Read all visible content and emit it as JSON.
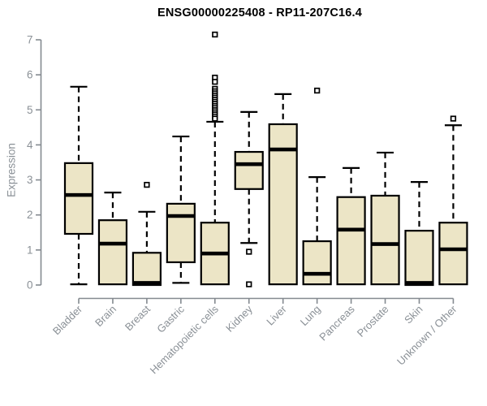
{
  "chart_data": {
    "type": "box",
    "title": "ENSG00000225408 - RP11-207C16.4",
    "ylabel": "Expression",
    "xlabel": "",
    "ylim": [
      0,
      7
    ],
    "yticks": [
      0,
      1,
      2,
      3,
      4,
      5,
      6,
      7
    ],
    "grid": false,
    "legend": "none",
    "categories": [
      "Bladder",
      "Brain",
      "Breast",
      "Gastric",
      "Hematopoietic cells",
      "Kidney",
      "Liver",
      "Lung",
      "Pancreas",
      "Prostate",
      "Skin",
      "Unknown / Other"
    ],
    "boxes": [
      {
        "category": "Bladder",
        "whisker_low": 0.02,
        "q1": 1.46,
        "median": 2.57,
        "q3": 3.48,
        "whisker_high": 5.66,
        "outliers": []
      },
      {
        "category": "Brain",
        "whisker_low": 0.02,
        "q1": 0.02,
        "median": 1.18,
        "q3": 1.85,
        "whisker_high": 2.64,
        "outliers": []
      },
      {
        "category": "Breast",
        "whisker_low": 0.0,
        "q1": 0.0,
        "median": 0.06,
        "q3": 0.92,
        "whisker_high": 2.09,
        "outliers": [
          2.86
        ]
      },
      {
        "category": "Gastric",
        "whisker_low": 0.06,
        "q1": 0.65,
        "median": 1.97,
        "q3": 2.32,
        "whisker_high": 4.24,
        "outliers": []
      },
      {
        "category": "Hematopoietic cells",
        "whisker_low": 0.02,
        "q1": 0.02,
        "median": 0.9,
        "q3": 1.78,
        "whisker_high": 4.66,
        "outliers": [
          7.15,
          5.92,
          5.8,
          5.6,
          5.53,
          5.47,
          5.41,
          5.35,
          5.29,
          5.23,
          5.17,
          5.11,
          5.05,
          4.99,
          4.93,
          4.87,
          4.81,
          4.75
        ]
      },
      {
        "category": "Kidney",
        "whisker_low": 1.2,
        "q1": 2.74,
        "median": 3.45,
        "q3": 3.8,
        "whisker_high": 4.94,
        "outliers": [
          0.95,
          0.02
        ]
      },
      {
        "category": "Liver",
        "whisker_low": 0.02,
        "q1": 0.02,
        "median": 3.87,
        "q3": 4.59,
        "whisker_high": 5.45,
        "outliers": []
      },
      {
        "category": "Lung",
        "whisker_low": 0.02,
        "q1": 0.02,
        "median": 0.32,
        "q3": 1.25,
        "whisker_high": 3.08,
        "outliers": [
          5.55
        ]
      },
      {
        "category": "Pancreas",
        "whisker_low": 0.02,
        "q1": 0.02,
        "median": 1.58,
        "q3": 2.51,
        "whisker_high": 3.34,
        "outliers": []
      },
      {
        "category": "Prostate",
        "whisker_low": 0.02,
        "q1": 0.02,
        "median": 1.17,
        "q3": 2.55,
        "whisker_high": 3.78,
        "outliers": []
      },
      {
        "category": "Skin",
        "whisker_low": 0.0,
        "q1": 0.0,
        "median": 0.06,
        "q3": 1.55,
        "whisker_high": 2.94,
        "outliers": []
      },
      {
        "category": "Unknown / Other",
        "whisker_low": 0.02,
        "q1": 0.02,
        "median": 1.02,
        "q3": 1.78,
        "whisker_high": 4.56,
        "outliers": [
          4.75
        ]
      }
    ],
    "colors": {
      "box_fill": "#ece5c6",
      "box_stroke": "#000000",
      "median": "#000000",
      "whisker": "#000000",
      "axis": "#848a90",
      "tick_label": "#8a9096",
      "title": "#000000",
      "background": "#ffffff"
    }
  }
}
